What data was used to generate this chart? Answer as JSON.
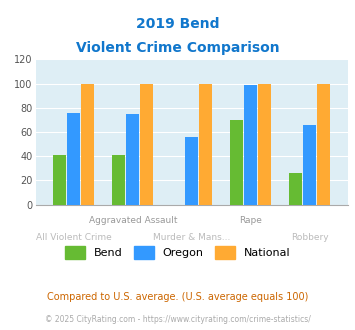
{
  "title_line1": "2019 Bend",
  "title_line2": "Violent Crime Comparison",
  "categories": [
    "All Violent Crime",
    "Aggravated Assault",
    "Murder & Mans...",
    "Rape",
    "Robbery"
  ],
  "bend_values": [
    41,
    41,
    0,
    70,
    26
  ],
  "oregon_values": [
    76,
    75,
    56,
    99,
    66
  ],
  "national_values": [
    100,
    100,
    100,
    100,
    100
  ],
  "bend_color": "#66bb33",
  "oregon_color": "#3399ff",
  "national_color": "#ffaa33",
  "ylim": [
    0,
    120
  ],
  "yticks": [
    0,
    20,
    40,
    60,
    80,
    100,
    120
  ],
  "plot_bg": "#deeef5",
  "footnote1": "Compared to U.S. average. (U.S. average equals 100)",
  "footnote2": "© 2025 CityRating.com - https://www.cityrating.com/crime-statistics/",
  "title_color": "#1177cc",
  "footnote1_color": "#cc6600",
  "footnote2_color": "#aaaaaa",
  "top_label_color": "#999999",
  "bottom_label_color": "#bbbbbb"
}
